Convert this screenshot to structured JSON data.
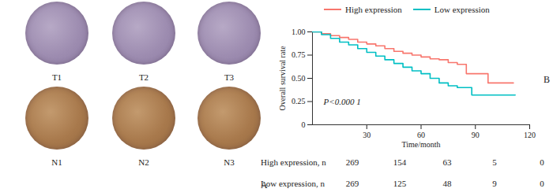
{
  "chart_data": {
    "type": "line",
    "panel_label": "B",
    "xlabel": "Time/month",
    "ylabel": "Overall survival rate",
    "xlim": [
      0,
      120
    ],
    "xticks": [
      30,
      60,
      90,
      120
    ],
    "ylim": [
      0,
      1
    ],
    "yticks": [
      0,
      0.25,
      {
        "value": 0.5,
        "label": "0.50"
      },
      0.75,
      {
        "value": 1,
        "label": "1.00"
      }
    ],
    "grid": false,
    "legend": "top",
    "line_style": "step",
    "annotations": [
      {
        "text": "P<0.000 1"
      }
    ],
    "series": [
      {
        "name": "High expression",
        "color": "#f8766d",
        "x": [
          0,
          5,
          10,
          15,
          20,
          25,
          30,
          35,
          40,
          45,
          50,
          55,
          60,
          65,
          70,
          75,
          80,
          85,
          90,
          97,
          111
        ],
        "values": [
          1.0,
          0.98,
          0.96,
          0.94,
          0.92,
          0.89,
          0.87,
          0.85,
          0.82,
          0.79,
          0.77,
          0.75,
          0.73,
          0.71,
          0.7,
          0.67,
          0.65,
          0.55,
          0.55,
          0.45,
          0.45
        ]
      },
      {
        "name": "Low expression",
        "color": "#00bfc4",
        "x": [
          0,
          5,
          10,
          15,
          20,
          25,
          30,
          35,
          40,
          45,
          50,
          55,
          60,
          65,
          70,
          75,
          80,
          88,
          95,
          112
        ],
        "values": [
          1.0,
          0.97,
          0.93,
          0.89,
          0.86,
          0.82,
          0.78,
          0.74,
          0.7,
          0.66,
          0.62,
          0.58,
          0.55,
          0.5,
          0.45,
          0.42,
          0.4,
          0.32,
          0.32,
          0.32
        ]
      }
    ],
    "risk_table": {
      "rows": [
        {
          "name": "High expression, n",
          "values": [
            269,
            154,
            63,
            5,
            0
          ]
        },
        {
          "name": "Low expression, n",
          "values": [
            269,
            125,
            48,
            9,
            0
          ]
        }
      ]
    }
  },
  "image_panel": {
    "panel_label": "A",
    "images": [
      {
        "label": "T1",
        "group": "T"
      },
      {
        "label": "T2",
        "group": "T"
      },
      {
        "label": "T3",
        "group": "T"
      },
      {
        "label": "N1",
        "group": "N"
      },
      {
        "label": "N2",
        "group": "N"
      },
      {
        "label": "N3",
        "group": "N"
      }
    ]
  }
}
